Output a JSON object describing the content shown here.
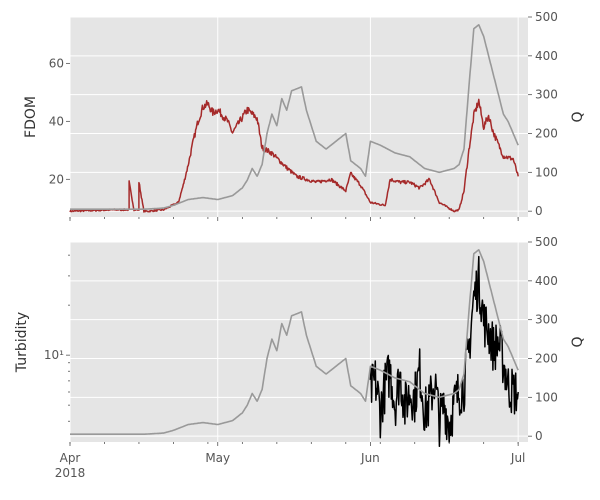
{
  "chart_data": [
    {
      "type": "line",
      "ylabel": "FDOM",
      "y2label": "Q",
      "ylim": [
        7,
        76
      ],
      "y2lim": [
        -15,
        500
      ],
      "yticks": [
        20,
        40,
        60
      ],
      "y2ticks": [
        0,
        100,
        200,
        300,
        400,
        500
      ],
      "grid": true,
      "series": [
        {
          "name": "",
          "axis": "left",
          "color": "#a52a2a",
          "x": [
            "2018-04-01",
            "2018-04-10",
            "2018-04-13",
            "2018-04-13",
            "2018-04-14",
            "2018-04-15",
            "2018-04-15",
            "2018-04-16",
            "2018-04-17",
            "2018-04-20",
            "2018-04-23",
            "2018-04-24",
            "2018-04-25",
            "2018-04-26",
            "2018-04-27",
            "2018-04-28",
            "2018-04-29",
            "2018-04-30",
            "2018-05-01",
            "2018-05-03",
            "2018-05-04",
            "2018-05-07",
            "2018-05-09",
            "2018-05-10",
            "2018-05-12",
            "2018-05-15",
            "2018-05-17",
            "2018-05-21",
            "2018-05-24",
            "2018-05-27",
            "2018-05-28",
            "2018-05-30",
            "2018-06-01",
            "2018-06-04",
            "2018-06-05",
            "2018-06-07",
            "2018-06-09",
            "2018-06-11",
            "2018-06-13",
            "2018-06-15",
            "2018-06-17",
            "2018-06-18",
            "2018-06-19",
            "2018-06-20",
            "2018-06-21",
            "2018-06-22",
            "2018-06-23",
            "2018-06-24",
            "2018-06-25",
            "2018-06-26",
            "2018-06-27",
            "2018-06-28",
            "2018-06-30",
            "2018-07-01"
          ],
          "y": [
            9,
            9.5,
            9.5,
            19,
            9.5,
            9.5,
            19,
            9,
            9,
            9.5,
            12,
            18,
            25,
            33,
            40,
            45,
            46,
            43,
            44,
            40,
            36,
            44,
            41,
            31,
            29,
            24,
            21,
            19,
            20,
            16,
            22,
            18,
            12,
            11,
            20,
            19,
            19,
            17,
            20,
            12,
            10,
            9,
            9.5,
            16,
            30,
            42,
            47,
            38,
            42,
            36,
            32,
            28,
            27,
            21
          ]
        },
        {
          "name": "",
          "axis": "right",
          "color": "#999999",
          "x": [
            "2018-04-01",
            "2018-04-16",
            "2018-04-20",
            "2018-04-22",
            "2018-04-25",
            "2018-04-28",
            "2018-05-01",
            "2018-05-04",
            "2018-05-06",
            "2018-05-07",
            "2018-05-08",
            "2018-05-09",
            "2018-05-10",
            "2018-05-11",
            "2018-05-12",
            "2018-05-13",
            "2018-05-14",
            "2018-05-15",
            "2018-05-16",
            "2018-05-18",
            "2018-05-19",
            "2018-05-20",
            "2018-05-21",
            "2018-05-23",
            "2018-05-25",
            "2018-05-27",
            "2018-05-28",
            "2018-05-30",
            "2018-05-31",
            "2018-06-01",
            "2018-06-03",
            "2018-06-06",
            "2018-06-09",
            "2018-06-12",
            "2018-06-15",
            "2018-06-18",
            "2018-06-19",
            "2018-06-20",
            "2018-06-21",
            "2018-06-22",
            "2018-06-23",
            "2018-06-24",
            "2018-06-25",
            "2018-06-26",
            "2018-06-28",
            "2018-06-29",
            "2018-06-30",
            "2018-07-01"
          ],
          "y": [
            5,
            5,
            8,
            15,
            30,
            35,
            30,
            40,
            60,
            80,
            110,
            90,
            120,
            200,
            250,
            220,
            290,
            260,
            310,
            320,
            260,
            220,
            180,
            160,
            180,
            200,
            130,
            110,
            90,
            180,
            170,
            150,
            140,
            110,
            100,
            110,
            120,
            160,
            320,
            470,
            480,
            450,
            400,
            350,
            250,
            230,
            200,
            170
          ]
        }
      ]
    },
    {
      "type": "line",
      "ylabel": "Turbidity",
      "y2label": "Q",
      "yscale": "log",
      "ylim": [
        3,
        48
      ],
      "y2lim": [
        -15,
        500
      ],
      "yticks": [
        10
      ],
      "yticklabels": [
        "10¹"
      ],
      "y2ticks": [
        0,
        100,
        200,
        300,
        400,
        500
      ],
      "xticks": [
        "2018-04-01",
        "2018-05-01",
        "2018-06-01",
        "2018-07-01"
      ],
      "xticklabels": [
        "Apr\n2018",
        "May",
        "Jun",
        "Jul"
      ],
      "grid": true,
      "series": [
        {
          "name": "",
          "axis": "left",
          "color": "#000000",
          "x": [
            "2018-06-01",
            "2018-06-02",
            "2018-06-03",
            "2018-06-04",
            "2018-06-05",
            "2018-06-06",
            "2018-06-07",
            "2018-06-08",
            "2018-06-09",
            "2018-06-10",
            "2018-06-11",
            "2018-06-12",
            "2018-06-13",
            "2018-06-14",
            "2018-06-15",
            "2018-06-16",
            "2018-06-17",
            "2018-06-18",
            "2018-06-19",
            "2018-06-20",
            "2018-06-21",
            "2018-06-22",
            "2018-06-23",
            "2018-06-24",
            "2018-06-25",
            "2018-06-26",
            "2018-06-27",
            "2018-06-28",
            "2018-06-29",
            "2018-06-30",
            "2018-07-01"
          ],
          "y": [
            6,
            7,
            4.5,
            6.5,
            8,
            5,
            7.5,
            4.8,
            6,
            5.5,
            8,
            4.5,
            5,
            7,
            4,
            5,
            3.8,
            5,
            6,
            6.5,
            10,
            22,
            28,
            16,
            14,
            11,
            12,
            9,
            6.5,
            6,
            6
          ]
        },
        {
          "name": "",
          "axis": "right",
          "color": "#999999",
          "x": [
            "2018-04-01",
            "2018-04-16",
            "2018-04-20",
            "2018-04-22",
            "2018-04-25",
            "2018-04-28",
            "2018-05-01",
            "2018-05-04",
            "2018-05-06",
            "2018-05-07",
            "2018-05-08",
            "2018-05-09",
            "2018-05-10",
            "2018-05-11",
            "2018-05-12",
            "2018-05-13",
            "2018-05-14",
            "2018-05-15",
            "2018-05-16",
            "2018-05-18",
            "2018-05-19",
            "2018-05-20",
            "2018-05-21",
            "2018-05-23",
            "2018-05-25",
            "2018-05-27",
            "2018-05-28",
            "2018-05-30",
            "2018-05-31",
            "2018-06-01",
            "2018-06-03",
            "2018-06-06",
            "2018-06-09",
            "2018-06-12",
            "2018-06-15",
            "2018-06-18",
            "2018-06-19",
            "2018-06-20",
            "2018-06-21",
            "2018-06-22",
            "2018-06-23",
            "2018-06-24",
            "2018-06-25",
            "2018-06-26",
            "2018-06-28",
            "2018-06-29",
            "2018-06-30",
            "2018-07-01"
          ],
          "y": [
            5,
            5,
            8,
            15,
            30,
            35,
            30,
            40,
            60,
            80,
            110,
            90,
            120,
            200,
            250,
            220,
            290,
            260,
            310,
            320,
            260,
            220,
            180,
            160,
            180,
            200,
            130,
            110,
            90,
            180,
            170,
            150,
            140,
            110,
            100,
            110,
            120,
            160,
            320,
            470,
            480,
            450,
            400,
            350,
            250,
            230,
            200,
            170
          ]
        }
      ]
    }
  ]
}
